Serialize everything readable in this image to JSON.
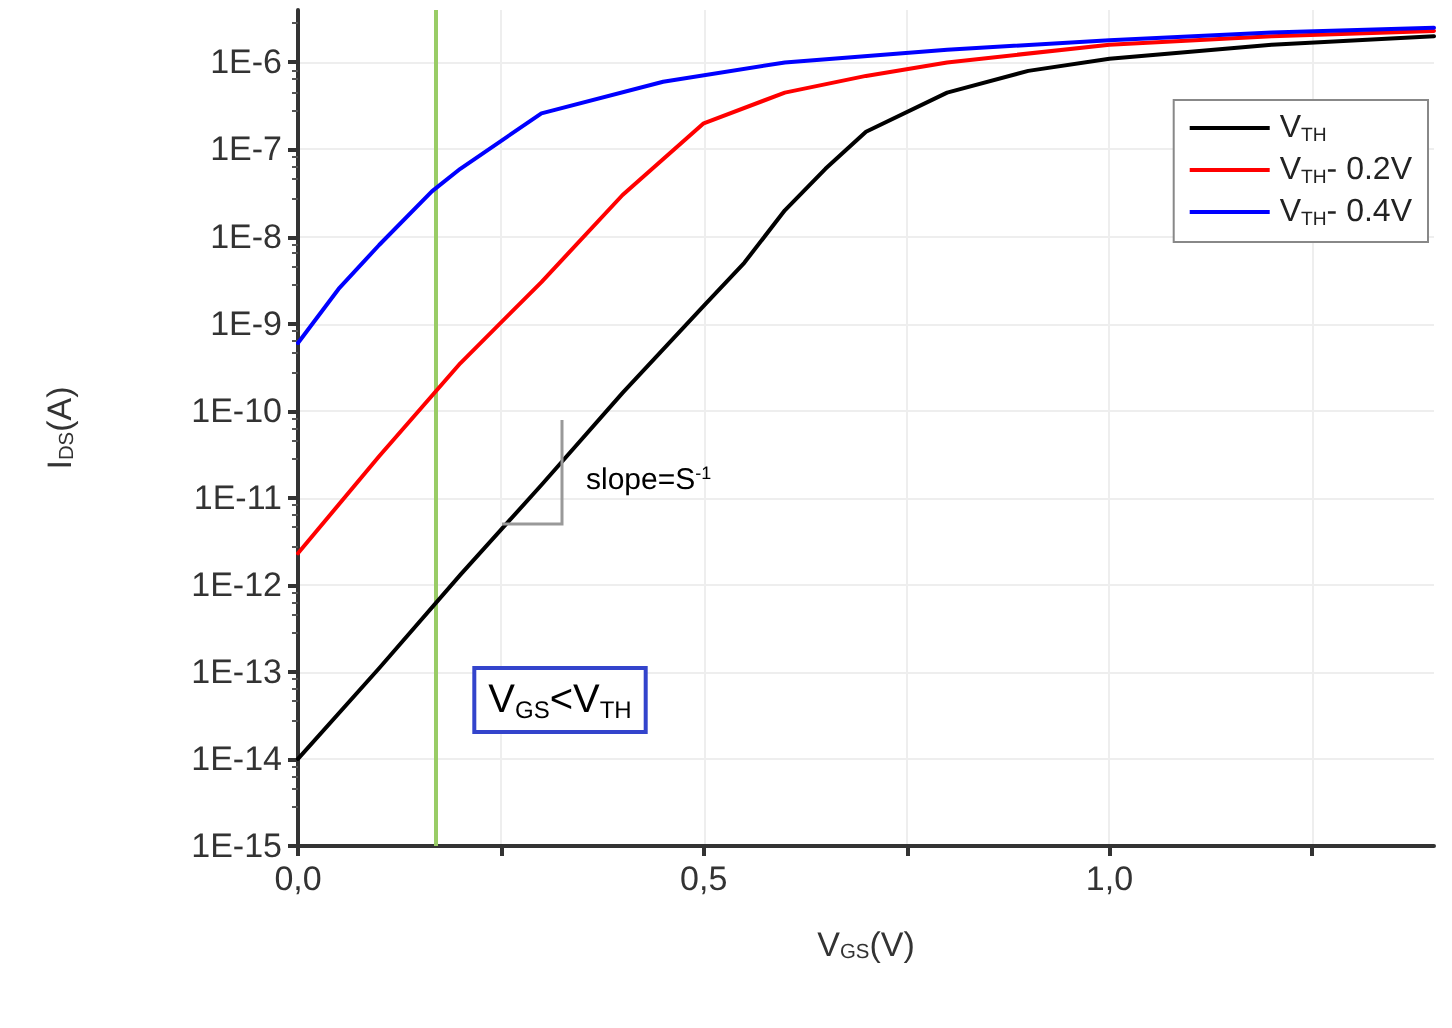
{
  "chart_data": {
    "type": "line",
    "xlabel": "V$_{GS}$(V)",
    "ylabel": "I$_{DS}$(A)",
    "log": "y",
    "xlim": [
      0,
      1.4
    ],
    "ylim": [
      1e-15,
      4e-06
    ],
    "xticks": [
      {
        "value": 0,
        "label": "0,0"
      },
      {
        "value": 0.25,
        "label": null
      },
      {
        "value": 0.5,
        "label": "0,5"
      },
      {
        "value": 0.75,
        "label": null
      },
      {
        "value": 1.0,
        "label": "1,0"
      },
      {
        "value": 1.25,
        "label": null
      }
    ],
    "yticks": [
      {
        "value": 1e-15,
        "label": "1E-15"
      },
      {
        "value": 1e-14,
        "label": "1E-14"
      },
      {
        "value": 1e-13,
        "label": "1E-13"
      },
      {
        "value": 1e-12,
        "label": "1E-12"
      },
      {
        "value": 1e-11,
        "label": "1E-11"
      },
      {
        "value": 1e-10,
        "label": "1E-10"
      },
      {
        "value": 1e-09,
        "label": "1E-9"
      },
      {
        "value": 1e-08,
        "label": "1E-8"
      },
      {
        "value": 1e-07,
        "label": "1E-7"
      },
      {
        "value": 1e-06,
        "label": "1E-6"
      }
    ],
    "grid": true,
    "legend": "top right",
    "marker": "none",
    "line_style": "solid",
    "series": [
      {
        "name": "V$_{TH}$",
        "color": "#000000",
        "x": [
          0,
          0.1,
          0.2,
          0.3,
          0.4,
          0.5,
          0.55,
          0.6,
          0.65,
          0.7,
          0.8,
          0.9,
          1.0,
          1.2,
          1.4
        ],
        "values": [
          1e-14,
          1.1e-13,
          1.3e-12,
          1.4e-11,
          1.6e-10,
          1.6e-09,
          5e-09,
          2e-08,
          6e-08,
          1.6e-07,
          4.5e-07,
          8e-07,
          1.1e-06,
          1.6e-06,
          2e-06
        ]
      },
      {
        "name": "V$_{TH}$- 0.2V",
        "color": "#ff0000",
        "x": [
          0,
          0.1,
          0.2,
          0.3,
          0.4,
          0.5,
          0.6,
          0.7,
          0.8,
          1.0,
          1.2,
          1.4
        ],
        "values": [
          2.3e-12,
          3e-11,
          3.5e-10,
          3e-09,
          3e-08,
          2e-07,
          4.5e-07,
          7e-07,
          1e-06,
          1.6e-06,
          2e-06,
          2.3e-06
        ]
      },
      {
        "name": "V$_{TH}$- 0.4V",
        "color": "#0000ff",
        "x": [
          0,
          0.05,
          0.1,
          0.165,
          0.2,
          0.3,
          0.45,
          0.6,
          0.8,
          1.0,
          1.2,
          1.4
        ],
        "values": [
          6e-10,
          2.5e-09,
          8e-09,
          3.3e-08,
          6e-08,
          2.6e-07,
          6e-07,
          1e-06,
          1.4e-06,
          1.8e-06,
          2.2e-06,
          2.5e-06
        ]
      }
    ],
    "ref_lines": [
      {
        "axis": "x",
        "value": 0.165,
        "label": null,
        "color": "#99cc66"
      }
    ],
    "annotations": [
      "slope=S$^{-1}$",
      "V$_{GS}$<V$_{TH}$"
    ]
  }
}
